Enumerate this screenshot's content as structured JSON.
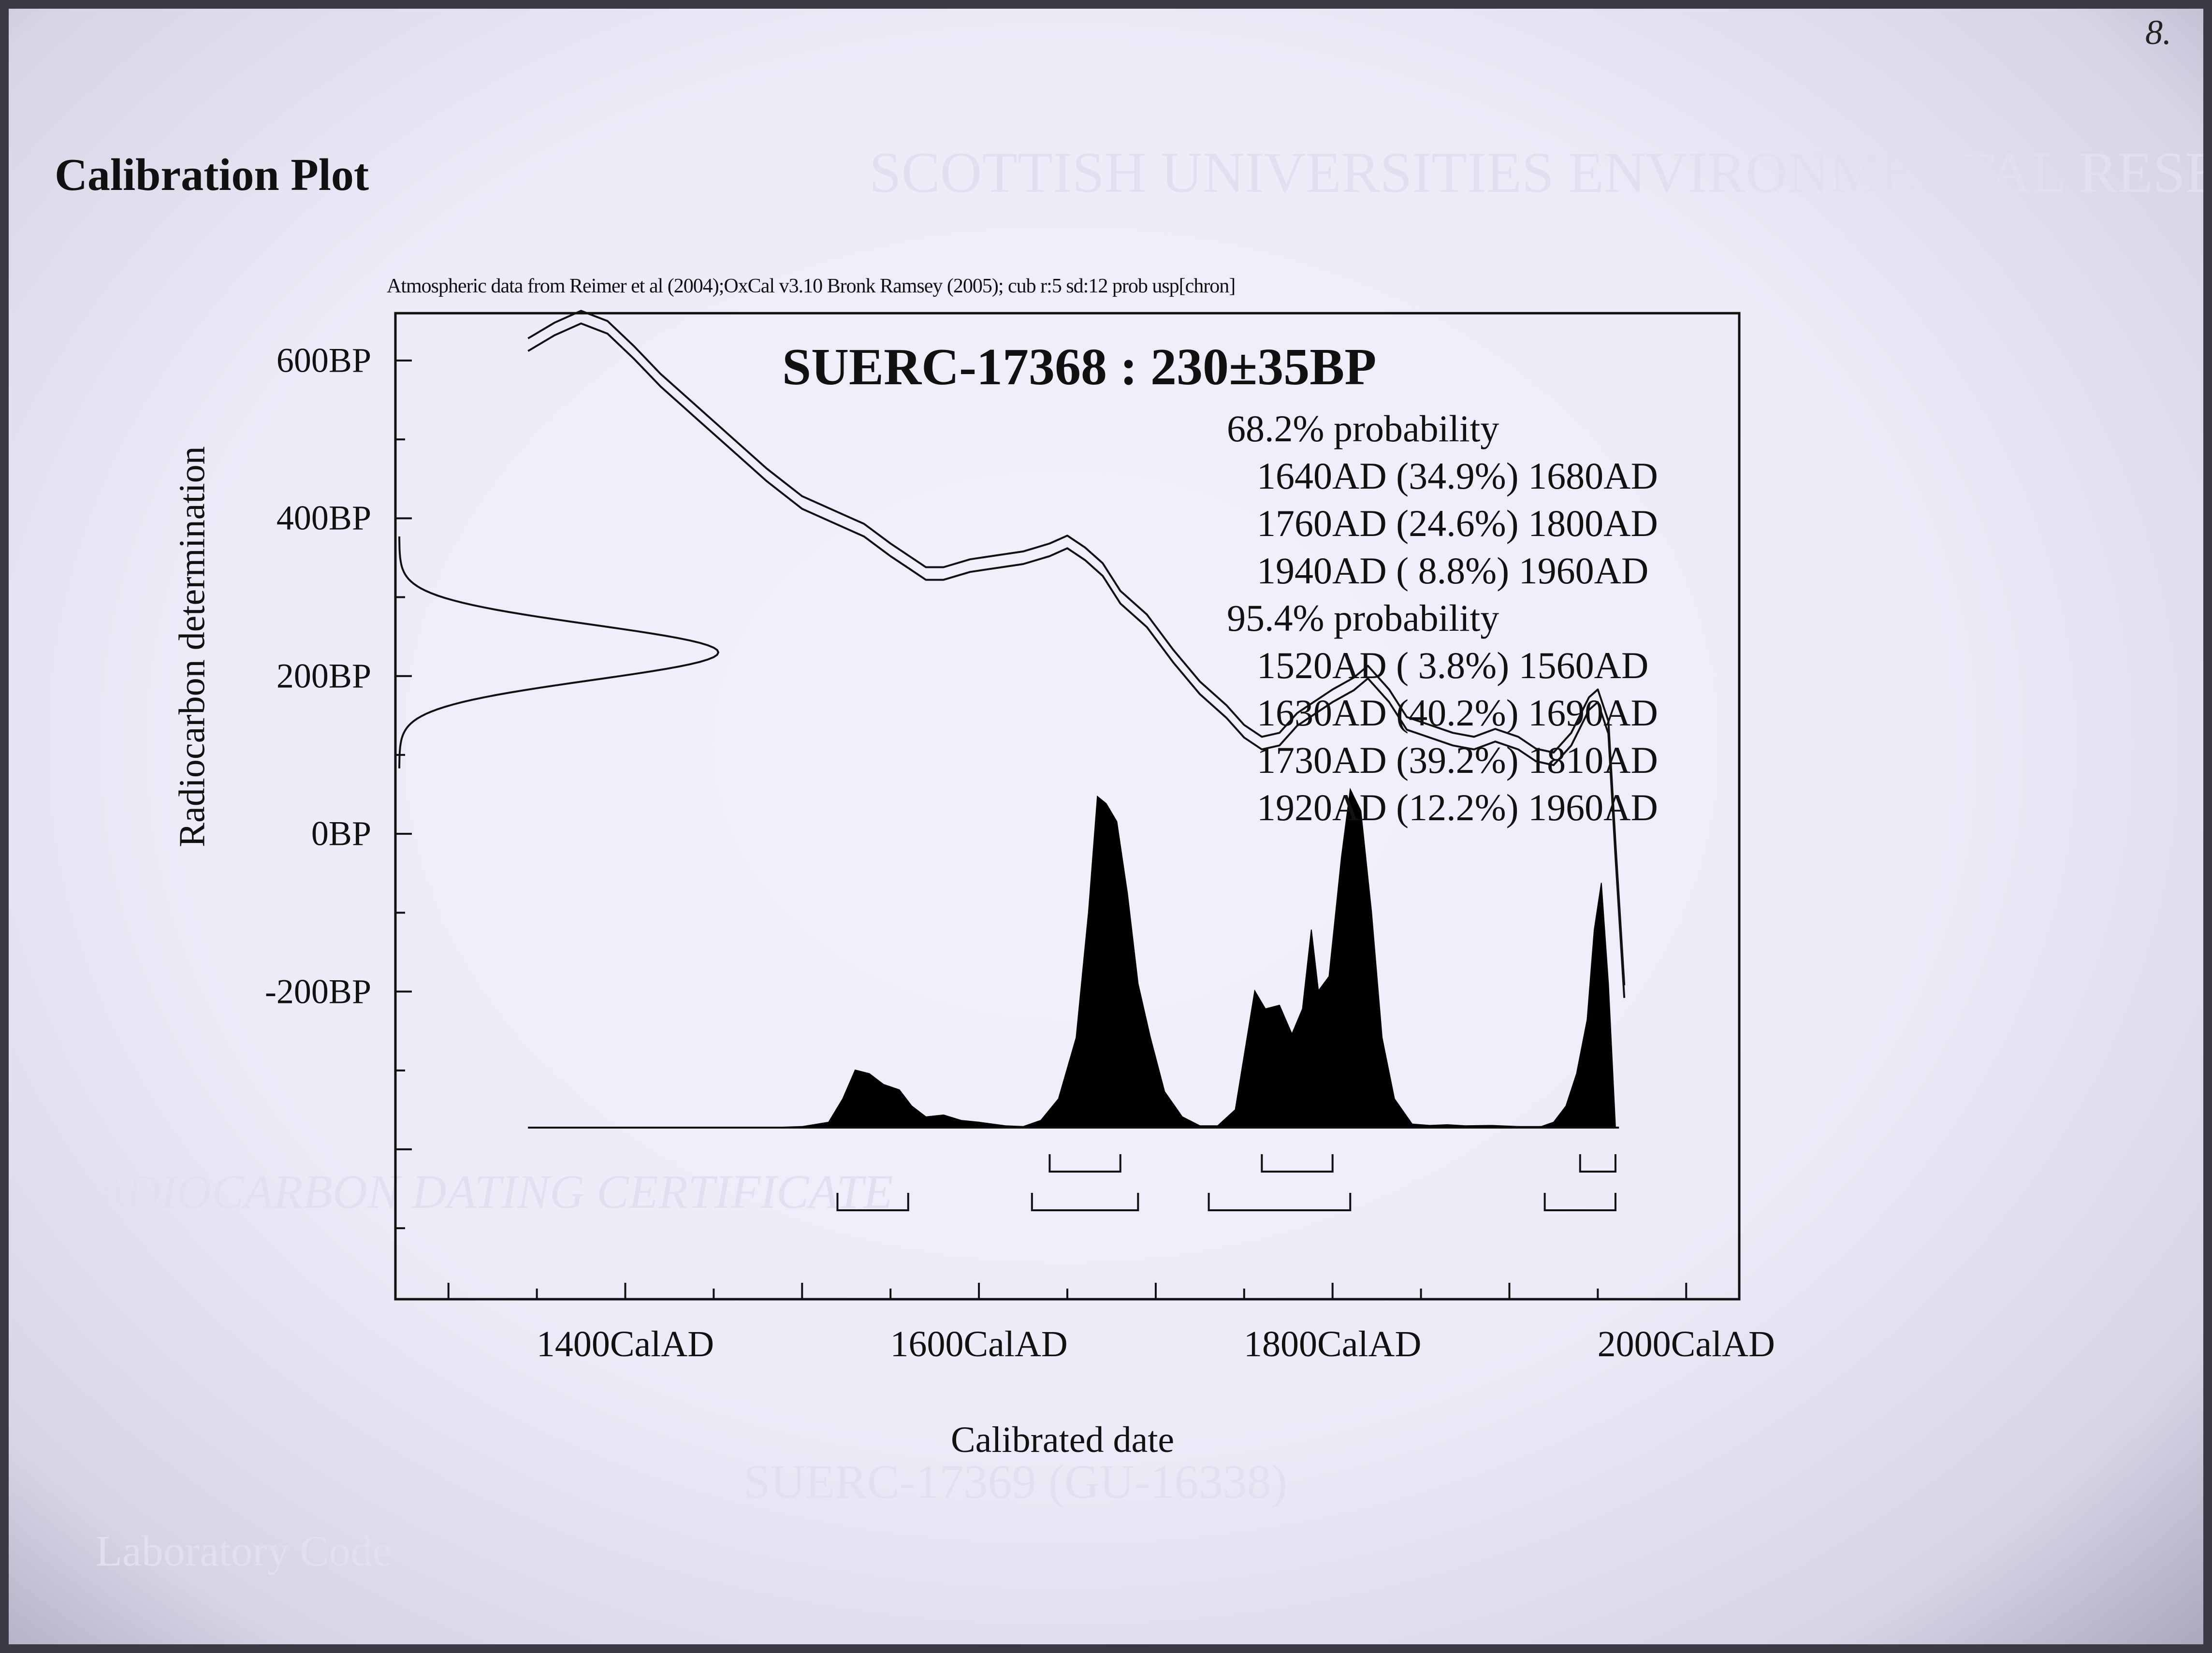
{
  "page_title": "Calibration Plot",
  "corner_mark": "8.",
  "background_letterhead": {
    "institution": "SCOTTISH UNIVERSITIES ENVIRONMENTAL RESEARCH CENTRE",
    "certificate_heading": "RADIOCARBON DATING CERTIFICATE",
    "lab_code_label": "Laboratory Code",
    "lab_code_value": "SUERC-17369 (GU-16338)"
  },
  "chart_data": {
    "type": "area",
    "title": "SUERC-17368 : 230±35BP",
    "source_note": "Atmospheric data from Reimer et al (2004);OxCal v3.10 Bronk Ramsey (2005); cub r:5 sd:12 prob usp[chron]",
    "xlabel": "Calibrated date",
    "ylabel": "Radiocarbon determination",
    "x_ticks": [
      "1400CalAD",
      "1600CalAD",
      "1800CalAD",
      "2000CalAD"
    ],
    "x_tick_values": [
      1400,
      1600,
      1800,
      2000
    ],
    "y_ticks": [
      "600BP",
      "400BP",
      "200BP",
      "0BP",
      "-200BP"
    ],
    "y_tick_values": [
      600,
      400,
      200,
      0,
      -200
    ],
    "xlim": [
      1270,
      2030
    ],
    "ylim": [
      -590,
      660
    ],
    "radiocarbon_determination": {
      "mean_bp": 230,
      "sigma": 35
    },
    "calibration_curve": [
      [
        1345,
        620
      ],
      [
        1360,
        640
      ],
      [
        1375,
        655
      ],
      [
        1390,
        642
      ],
      [
        1405,
        610
      ],
      [
        1420,
        575
      ],
      [
        1440,
        535
      ],
      [
        1460,
        495
      ],
      [
        1480,
        455
      ],
      [
        1500,
        420
      ],
      [
        1520,
        400
      ],
      [
        1535,
        385
      ],
      [
        1550,
        360
      ],
      [
        1560,
        345
      ],
      [
        1570,
        330
      ],
      [
        1580,
        330
      ],
      [
        1595,
        340
      ],
      [
        1610,
        345
      ],
      [
        1625,
        350
      ],
      [
        1640,
        360
      ],
      [
        1650,
        370
      ],
      [
        1660,
        355
      ],
      [
        1670,
        335
      ],
      [
        1680,
        300
      ],
      [
        1695,
        270
      ],
      [
        1710,
        225
      ],
      [
        1725,
        185
      ],
      [
        1740,
        155
      ],
      [
        1750,
        130
      ],
      [
        1760,
        115
      ],
      [
        1770,
        120
      ],
      [
        1780,
        145
      ],
      [
        1790,
        160
      ],
      [
        1800,
        175
      ],
      [
        1812,
        190
      ],
      [
        1820,
        205
      ],
      [
        1832,
        175
      ],
      [
        1842,
        140
      ],
      [
        1855,
        130
      ],
      [
        1868,
        120
      ],
      [
        1880,
        115
      ],
      [
        1892,
        125
      ],
      [
        1905,
        115
      ],
      [
        1915,
        100
      ],
      [
        1925,
        95
      ],
      [
        1935,
        120
      ],
      [
        1945,
        165
      ],
      [
        1950,
        175
      ],
      [
        1956,
        135
      ],
      [
        1960,
        -20
      ],
      [
        1965,
        -200
      ]
    ],
    "calibration_curve_sigma": 8,
    "probability_distribution": [
      [
        1345,
        0
      ],
      [
        1480,
        0
      ],
      [
        1500,
        0.3
      ],
      [
        1515,
        1.5
      ],
      [
        1523,
        8
      ],
      [
        1530,
        16
      ],
      [
        1538,
        15
      ],
      [
        1546,
        12
      ],
      [
        1555,
        10.5
      ],
      [
        1562,
        6
      ],
      [
        1570,
        3
      ],
      [
        1580,
        3.5
      ],
      [
        1590,
        2
      ],
      [
        1600,
        1.5
      ],
      [
        1615,
        0.5
      ],
      [
        1625,
        0.3
      ],
      [
        1635,
        2
      ],
      [
        1645,
        8
      ],
      [
        1655,
        25
      ],
      [
        1662,
        60
      ],
      [
        1667,
        92
      ],
      [
        1672,
        90
      ],
      [
        1678,
        85
      ],
      [
        1684,
        65
      ],
      [
        1690,
        40
      ],
      [
        1697,
        25
      ],
      [
        1705,
        10
      ],
      [
        1715,
        3
      ],
      [
        1725,
        0.5
      ],
      [
        1735,
        0.5
      ],
      [
        1745,
        5
      ],
      [
        1750,
        20
      ],
      [
        1756,
        38
      ],
      [
        1762,
        33
      ],
      [
        1770,
        34
      ],
      [
        1777,
        26
      ],
      [
        1783,
        33
      ],
      [
        1788,
        55
      ],
      [
        1792,
        38
      ],
      [
        1798,
        42
      ],
      [
        1805,
        75
      ],
      [
        1810,
        94
      ],
      [
        1816,
        88
      ],
      [
        1822,
        60
      ],
      [
        1828,
        25
      ],
      [
        1835,
        8
      ],
      [
        1845,
        1
      ],
      [
        1855,
        0.6
      ],
      [
        1865,
        0.8
      ],
      [
        1875,
        0.5
      ],
      [
        1890,
        0.6
      ],
      [
        1905,
        0.3
      ],
      [
        1918,
        0.3
      ],
      [
        1925,
        1.5
      ],
      [
        1932,
        6
      ],
      [
        1938,
        15
      ],
      [
        1944,
        30
      ],
      [
        1948,
        55
      ],
      [
        1952,
        68
      ],
      [
        1956,
        40
      ],
      [
        1960,
        0
      ]
    ],
    "probability_label_68": "68.2% probability",
    "ranges_68": [
      {
        "from": "1640AD",
        "pct": "(34.9%)",
        "to": "1680AD"
      },
      {
        "from": "1760AD",
        "pct": "(24.6%)",
        "to": "1800AD"
      },
      {
        "from": "1940AD",
        "pct": "( 8.8%)",
        "to": "1960AD"
      }
    ],
    "probability_label_95": "95.4% probability",
    "ranges_95": [
      {
        "from": "1520AD",
        "pct": "( 3.8%)",
        "to": "1560AD"
      },
      {
        "from": "1630AD",
        "pct": "(40.2%)",
        "to": "1690AD"
      },
      {
        "from": "1730AD",
        "pct": "(39.2%)",
        "to": "1810AD"
      },
      {
        "from": "1920AD",
        "pct": "(12.2%)",
        "to": "1960AD"
      }
    ],
    "bracket_ranges_68": [
      [
        1640,
        1680
      ],
      [
        1760,
        1800
      ],
      [
        1940,
        1960
      ]
    ],
    "bracket_ranges_95": [
      [
        1520,
        1560
      ],
      [
        1630,
        1690
      ],
      [
        1730,
        1810
      ],
      [
        1920,
        1960
      ]
    ],
    "grid": false,
    "colors": {
      "curve": "#111111",
      "distribution_fill": "#000000",
      "axis": "#111111"
    }
  }
}
